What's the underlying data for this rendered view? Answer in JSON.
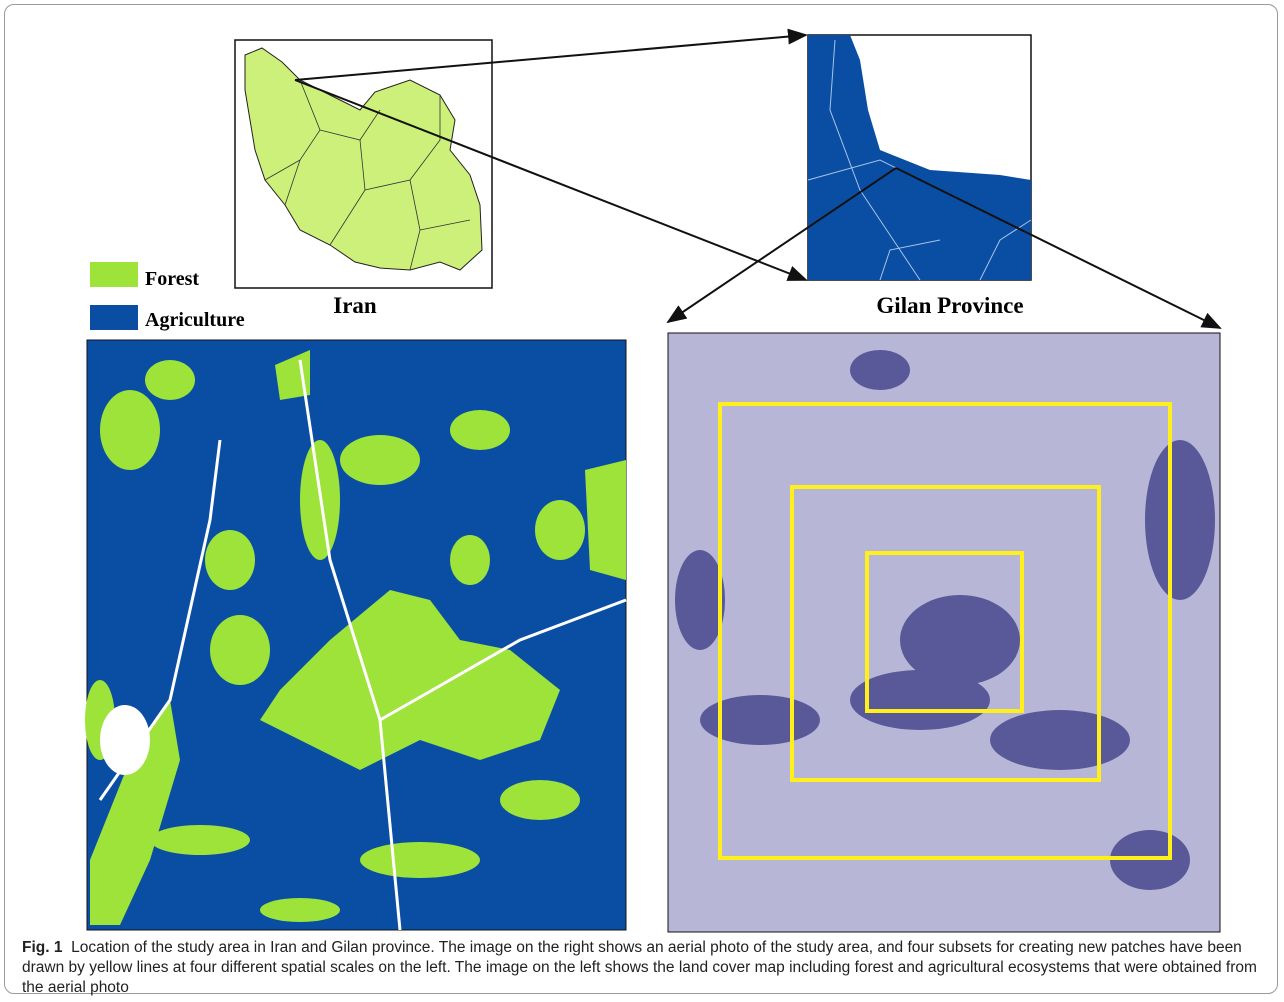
{
  "figure": {
    "legend": [
      "Forest",
      "Agriculture"
    ],
    "panel_labels": [
      "Iran",
      "Gilan Province"
    ],
    "caption": {
      "label": "Fig. 1",
      "text": "Location of the study area in Iran and Gilan province. The image on the right shows an aerial photo of the study area, and four subsets for creating new patches have been drawn by yellow lines at four different spatial scales on the left. The image on the left shows the land cover map including forest and agricultural ecosystems that were obtained from the aerial photo"
    }
  }
}
